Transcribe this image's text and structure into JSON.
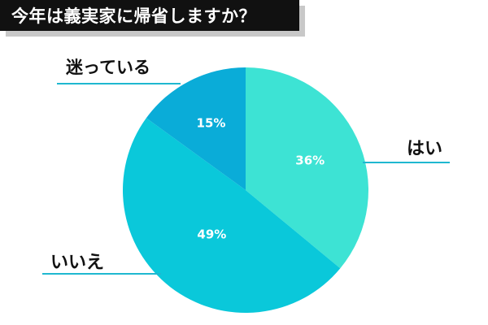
{
  "title": "今年は義実家に帰省しますか？",
  "chart_data": {
    "type": "pie",
    "slices": [
      {
        "label": "はい",
        "value": 36,
        "value_label": "36%",
        "color": "#3de3d4"
      },
      {
        "label": "いいえ",
        "value": 49,
        "value_label": "49%",
        "color": "#0ac8da"
      },
      {
        "label": "迷っている",
        "value": 15,
        "value_label": "15%",
        "color": "#0aacd8"
      }
    ],
    "start_angle_deg": 0,
    "direction": "clockwise",
    "line_color": "#1fb8d0"
  }
}
